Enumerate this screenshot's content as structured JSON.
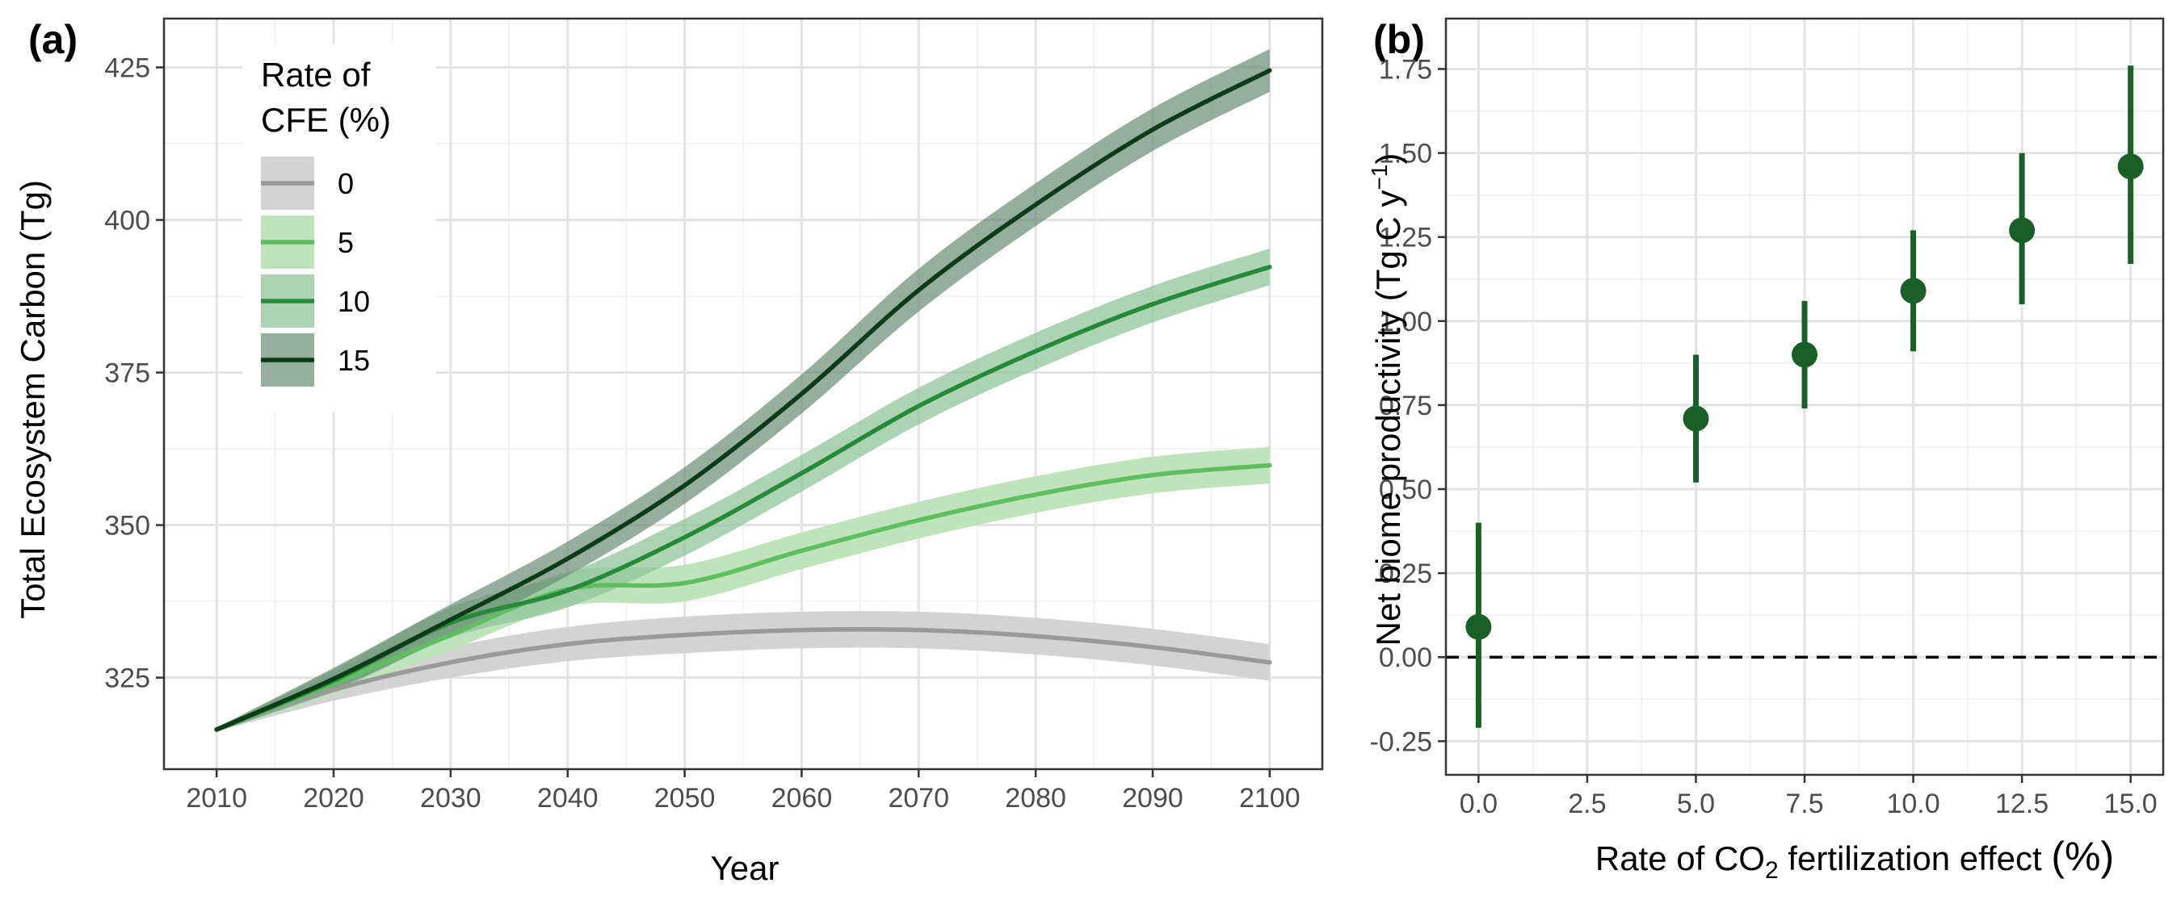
{
  "chart_data": [
    {
      "panel": "(a)",
      "type": "line",
      "xlabel": "Year",
      "ylabel": "Total Ecosystem Carbon (Tg)",
      "xlim": [
        2005.5,
        2104.5
      ],
      "ylim": [
        310,
        433
      ],
      "xticks": [
        2010,
        2020,
        2030,
        2040,
        2050,
        2060,
        2070,
        2080,
        2090,
        2100
      ],
      "yticks": [
        325,
        350,
        375,
        400,
        425
      ],
      "grid": true,
      "legend": {
        "title_line1": "Rate of",
        "title_line2": "CFE (%)",
        "position": "top-left"
      },
      "x": [
        2010,
        2020,
        2030,
        2040,
        2050,
        2060,
        2070,
        2080,
        2090,
        2100
      ],
      "series": [
        {
          "name": "0",
          "color": "#9a9a9a",
          "band": "#d3d3d3",
          "band_opacity": 1.0,
          "values": [
            316.5,
            323.0,
            327.5,
            330.5,
            332.0,
            332.8,
            332.8,
            331.8,
            330.0,
            327.5
          ],
          "half_width": [
            0.3,
            1.8,
            2.5,
            2.8,
            3.0,
            3.0,
            3.0,
            3.0,
            3.0,
            3.0
          ]
        },
        {
          "name": "5",
          "color": "#5fbf60",
          "band": "#bfe4bc",
          "band_opacity": 1.0,
          "values": [
            316.5,
            324.0,
            332.0,
            339.5,
            340.5,
            345.8,
            350.8,
            355.0,
            358.2,
            359.8
          ],
          "half_width": [
            0.3,
            1.8,
            2.5,
            2.8,
            3.0,
            3.0,
            3.0,
            3.0,
            3.0,
            3.0
          ]
        },
        {
          "name": "10",
          "color": "#278a3b",
          "band": "#8fc49b",
          "band_opacity": 0.75,
          "values": [
            316.5,
            324.5,
            334.0,
            339.3,
            348.0,
            358.5,
            369.5,
            378.5,
            386.2,
            392.3
          ],
          "half_width": [
            0.3,
            1.8,
            2.5,
            2.8,
            3.0,
            3.0,
            3.0,
            3.0,
            3.0,
            3.0
          ]
        },
        {
          "name": "15",
          "color": "#0c3b18",
          "band": "#6e8f78",
          "band_opacity": 0.72,
          "values": [
            316.5,
            324.8,
            334.5,
            344.5,
            356.5,
            371.5,
            388.5,
            402.5,
            414.8,
            424.5
          ],
          "half_width": [
            0.3,
            1.8,
            2.5,
            2.8,
            3.0,
            3.2,
            3.5,
            3.5,
            3.5,
            3.5
          ]
        }
      ]
    },
    {
      "panel": "(b)",
      "type": "scatter",
      "xlabel_pre": "Rate of CO",
      "xlabel_sub": "2",
      "xlabel_post": " fertilization effect ",
      "xlabel_unit": "(%)",
      "ylabel_pre": "Net biome productivity ",
      "ylabel_unit_main": "(Tg C y",
      "ylabel_unit_sup": "−1",
      "ylabel_unit_close": ")",
      "xlim": [
        -0.75,
        15.75
      ],
      "ylim": [
        -0.35,
        1.9
      ],
      "xticks": [
        "0.0",
        "2.5",
        "5.0",
        "7.5",
        "10.0",
        "12.5",
        "15.0"
      ],
      "yticks": [
        "-0.25",
        "0.00",
        "0.25",
        "0.50",
        "0.75",
        "1.00",
        "1.25",
        "1.50",
        "1.75"
      ],
      "reference_line": 0,
      "grid": true,
      "color": "#1a5e28",
      "points": [
        {
          "x": 0.0,
          "y": 0.09,
          "lo": -0.21,
          "hi": 0.4
        },
        {
          "x": 5.0,
          "y": 0.71,
          "lo": 0.52,
          "hi": 0.9
        },
        {
          "x": 7.5,
          "y": 0.9,
          "lo": 0.74,
          "hi": 1.06
        },
        {
          "x": 10.0,
          "y": 1.09,
          "lo": 0.91,
          "hi": 1.27
        },
        {
          "x": 12.5,
          "y": 1.27,
          "lo": 1.05,
          "hi": 1.5
        },
        {
          "x": 15.0,
          "y": 1.46,
          "lo": 1.17,
          "hi": 1.76
        }
      ]
    }
  ]
}
